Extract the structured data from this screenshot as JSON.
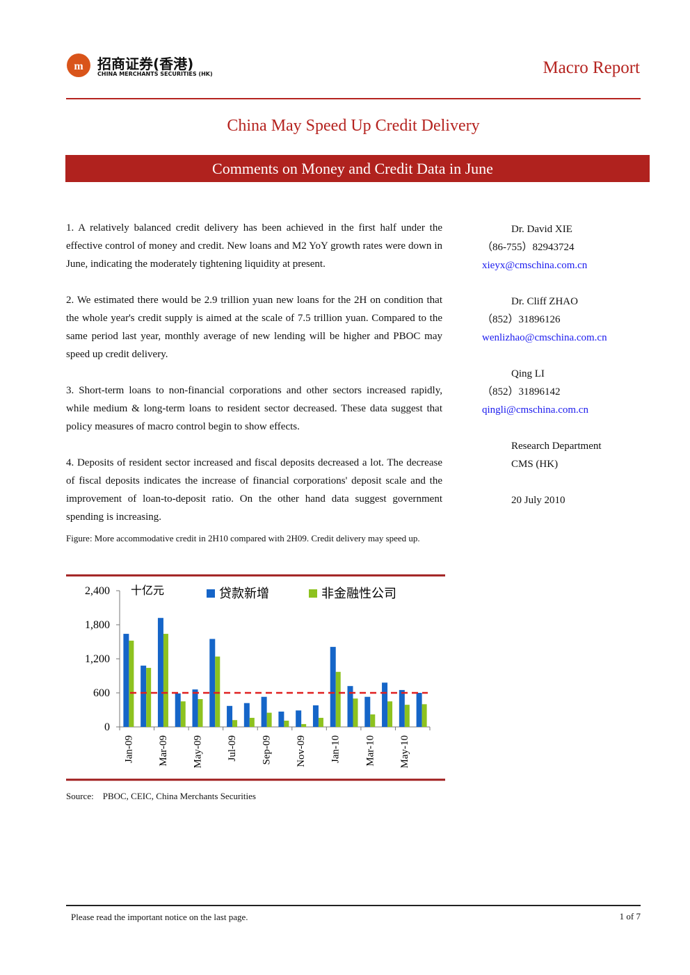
{
  "header": {
    "logo_cn": "招商证券(香港)",
    "logo_en": "CHINA MERCHANTS SECURITIES (HK)",
    "report_type": "Macro Report"
  },
  "title": "China May Speed Up Credit Delivery",
  "subtitle": "Comments on Money and Credit Data in June",
  "paragraphs": [
    "1. A relatively balanced credit delivery has been achieved in the first half under the effective control of money and credit. New loans and M2 YoY growth rates were down in June, indicating the moderately tightening liquidity at present.",
    "2. We estimated there would be 2.9 trillion yuan new loans for the 2H on condition that the whole year's credit supply is aimed at the scale of 7.5 trillion yuan. Compared to the same period last year, monthly average of new lending will be higher and PBOC may speed up credit delivery.",
    "3. Short-term loans to non-financial corporations and other sectors increased rapidly, while medium & long-term loans to resident sector decreased. These data suggest that policy measures of macro control begin to show effects.",
    "4. Deposits of resident sector increased and fiscal deposits decreased a lot. The decrease of fiscal deposits indicates the increase of financial corporations' deposit scale and the improvement of loan-to-deposit ratio. On the other hand data suggest government spending is increasing."
  ],
  "figure_caption": "Figure: More accommodative credit in 2H10 compared with 2H09. Credit delivery may speed up.",
  "contacts": [
    {
      "name": "Dr. David XIE",
      "phone": "（86-755）82943724",
      "email": "xieyx@cmschina.com.cn"
    },
    {
      "name": "Dr. Cliff ZHAO",
      "phone": "（852）31896126",
      "email": "wenlizhao@cmschina.com.cn"
    },
    {
      "name": "Qing LI",
      "phone": "（852）31896142",
      "email": "qingli@cmschina.com.cn"
    }
  ],
  "department": [
    "Research Department",
    "CMS (HK)"
  ],
  "date": "20 July 2010",
  "chart_data": {
    "type": "bar",
    "unit_label": "十亿元",
    "categories": [
      "Jan-09",
      null,
      "Mar-09",
      null,
      "May-09",
      null,
      "Jul-09",
      null,
      "Sep-09",
      null,
      "Nov-09",
      null,
      "Jan-10",
      null,
      "Mar-10",
      null,
      "May-10",
      null
    ],
    "series": [
      {
        "name": "贷款新增",
        "color": "#1565c8",
        "values": [
          1640,
          1080,
          1920,
          590,
          660,
          1550,
          370,
          420,
          530,
          270,
          290,
          380,
          1410,
          720,
          530,
          780,
          650,
          600
        ]
      },
      {
        "name": "非金融性公司",
        "color": "#8dc21f",
        "values": [
          1520,
          1040,
          1640,
          450,
          490,
          1240,
          120,
          160,
          250,
          110,
          50,
          160,
          970,
          500,
          220,
          450,
          390,
          400
        ]
      }
    ],
    "ylim": [
      0,
      2400
    ],
    "yticks": [
      0,
      600,
      {
        "value": 1200,
        "label": "1,200"
      },
      {
        "value": 1800,
        "label": "1,800"
      },
      {
        "value": 2400,
        "label": "2,400"
      }
    ],
    "reference_line": 600,
    "reference_color": "#e02020"
  },
  "source": "Source:    PBOC, CEIC, China Merchants Securities",
  "footer": {
    "notice": "Please read the important notice on the last page.",
    "page": "1 of 7"
  }
}
